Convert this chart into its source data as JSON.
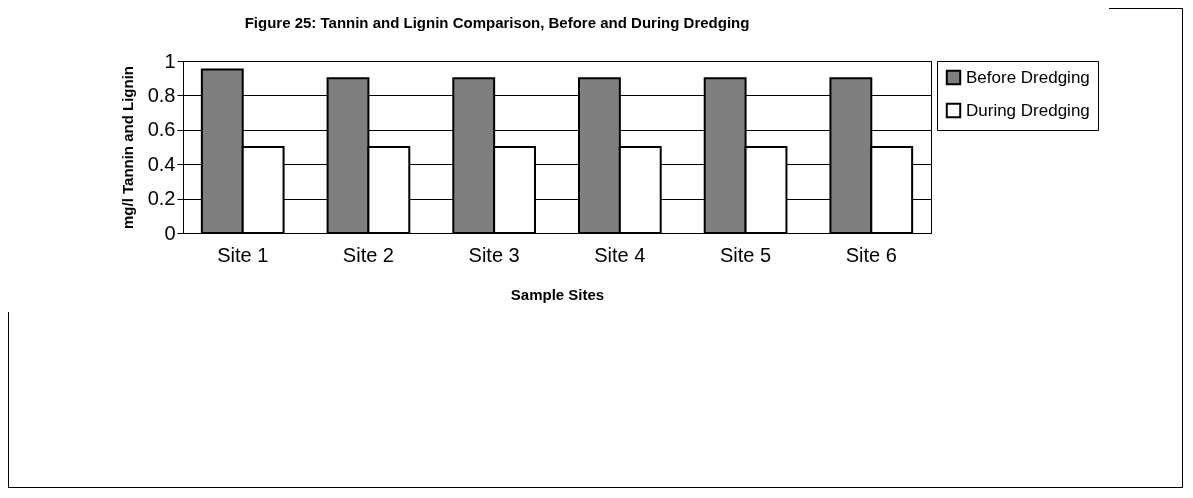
{
  "chart_data": {
    "type": "bar",
    "title": "Figure 25:  Tannin and Lignin Comparison, Before and During Dredging",
    "xlabel": "Sample Sites",
    "ylabel": "mg/l Tannin and Lignin",
    "categories": [
      "Site 1",
      "Site 2",
      "Site 3",
      "Site 4",
      "Site 5",
      "Site 6"
    ],
    "series": [
      {
        "name": "Before Dredging",
        "color": "#7f7f7f",
        "values": [
          0.95,
          0.9,
          0.9,
          0.9,
          0.9,
          0.9
        ]
      },
      {
        "name": "During Dredging",
        "color": "#ffffff",
        "values": [
          0.5,
          0.5,
          0.5,
          0.5,
          0.5,
          0.5
        ]
      }
    ],
    "ylim": [
      0,
      1
    ],
    "yticks": [
      0,
      0.2,
      0.4,
      0.6,
      0.8,
      1
    ],
    "grid": "y",
    "legend": "right"
  }
}
